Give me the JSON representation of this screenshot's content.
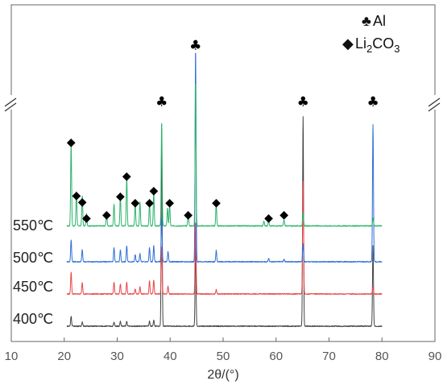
{
  "chart_data": {
    "type": "line",
    "xlabel": "2θ/(°)",
    "ylabel": "",
    "xlim": [
      10,
      90
    ],
    "x_ticks": [
      "10",
      "20",
      "30",
      "40",
      "50",
      "60",
      "70",
      "80",
      "90"
    ],
    "axis_break": true,
    "legend": {
      "placement": "top-right",
      "entries": [
        {
          "marker": "club",
          "symbol": "♣",
          "label": "Al"
        },
        {
          "marker": "diamond",
          "symbol": "◆",
          "label_main": "Li",
          "label_sub1": "2",
          "label_mid": "CO",
          "label_sub2": "3"
        }
      ]
    },
    "series": [
      {
        "name": "550℃",
        "color": "#2db36b",
        "baseline": 0.25,
        "peaks": [
          {
            "x": 21.3,
            "h": 2.05
          },
          {
            "x": 22.3,
            "h": 0.85
          },
          {
            "x": 23.4,
            "h": 0.75
          },
          {
            "x": 24.2,
            "h": 0.3
          },
          {
            "x": 28.0,
            "h": 0.3
          },
          {
            "x": 29.4,
            "h": 0.55
          },
          {
            "x": 30.6,
            "h": 0.75
          },
          {
            "x": 31.8,
            "h": 1.2
          },
          {
            "x": 33.4,
            "h": 0.55
          },
          {
            "x": 34.3,
            "h": 0.6
          },
          {
            "x": 36.1,
            "h": 0.55
          },
          {
            "x": 36.9,
            "h": 0.85
          },
          {
            "x": 38.4,
            "h": 2.6
          },
          {
            "x": 39.5,
            "h": 0.45
          },
          {
            "x": 39.9,
            "h": 0.5
          },
          {
            "x": 43.4,
            "h": 0.3
          },
          {
            "x": 44.8,
            "h": 3.6
          },
          {
            "x": 48.7,
            "h": 0.55
          },
          {
            "x": 57.7,
            "h": 0.12
          },
          {
            "x": 58.6,
            "h": 0.15
          },
          {
            "x": 61.5,
            "h": 0.15
          },
          {
            "x": 65.1,
            "h": 0.35
          },
          {
            "x": 78.3,
            "h": 0.2
          }
        ]
      },
      {
        "name": "500℃",
        "color": "#2f6fd6",
        "baseline": 0,
        "peaks": [
          {
            "x": 21.3,
            "h": 0.55
          },
          {
            "x": 23.4,
            "h": 0.3
          },
          {
            "x": 29.4,
            "h": 0.35
          },
          {
            "x": 30.6,
            "h": 0.3
          },
          {
            "x": 31.8,
            "h": 0.4
          },
          {
            "x": 33.4,
            "h": 0.18
          },
          {
            "x": 34.3,
            "h": 0.2
          },
          {
            "x": 36.1,
            "h": 0.35
          },
          {
            "x": 36.9,
            "h": 0.4
          },
          {
            "x": 38.4,
            "h": 1.1
          },
          {
            "x": 39.6,
            "h": 0.25
          },
          {
            "x": 44.8,
            "h": 5.3
          },
          {
            "x": 48.7,
            "h": 0.28
          },
          {
            "x": 58.6,
            "h": 0.08
          },
          {
            "x": 61.5,
            "h": 0.06
          },
          {
            "x": 65.1,
            "h": 0.45
          },
          {
            "x": 78.3,
            "h": 3.4
          }
        ]
      },
      {
        "name": "450℃",
        "color": "#e8474a",
        "baseline": 0,
        "peaks": [
          {
            "x": 21.3,
            "h": 0.55
          },
          {
            "x": 23.4,
            "h": 0.28
          },
          {
            "x": 29.4,
            "h": 0.3
          },
          {
            "x": 30.6,
            "h": 0.25
          },
          {
            "x": 31.8,
            "h": 0.3
          },
          {
            "x": 33.4,
            "h": 0.12
          },
          {
            "x": 34.3,
            "h": 0.18
          },
          {
            "x": 36.1,
            "h": 0.32
          },
          {
            "x": 36.9,
            "h": 0.35
          },
          {
            "x": 38.4,
            "h": 1.2
          },
          {
            "x": 39.6,
            "h": 0.2
          },
          {
            "x": 44.8,
            "h": 1.8
          },
          {
            "x": 48.7,
            "h": 0.12
          },
          {
            "x": 65.1,
            "h": 2.8
          },
          {
            "x": 78.3,
            "h": 0.2
          }
        ]
      },
      {
        "name": "400℃",
        "color": "#444444",
        "baseline": 0,
        "peaks": [
          {
            "x": 21.3,
            "h": 0.25
          },
          {
            "x": 23.4,
            "h": 0.1
          },
          {
            "x": 29.4,
            "h": 0.1
          },
          {
            "x": 30.6,
            "h": 0.12
          },
          {
            "x": 31.8,
            "h": 0.12
          },
          {
            "x": 36.1,
            "h": 0.12
          },
          {
            "x": 36.9,
            "h": 0.15
          },
          {
            "x": 38.4,
            "h": 5.0
          },
          {
            "x": 44.8,
            "h": 2.0
          },
          {
            "x": 65.1,
            "h": 5.2
          },
          {
            "x": 78.3,
            "h": 2.0
          }
        ]
      }
    ],
    "annotations": [
      {
        "symbol": "♣",
        "x": 38.4
      },
      {
        "symbol": "♣",
        "x": 44.8
      },
      {
        "symbol": "♣",
        "x": 65.1
      },
      {
        "symbol": "♣",
        "x": 78.3
      },
      {
        "symbol": "◆",
        "x": 21.3
      },
      {
        "symbol": "◆",
        "x": 22.3
      },
      {
        "symbol": "◆",
        "x": 23.4
      },
      {
        "symbol": "◆",
        "x": 24.2
      },
      {
        "symbol": "◆",
        "x": 28.0
      },
      {
        "symbol": "◆",
        "x": 30.6
      },
      {
        "symbol": "◆",
        "x": 31.8
      },
      {
        "symbol": "◆",
        "x": 33.4
      },
      {
        "symbol": "◆",
        "x": 36.1
      },
      {
        "symbol": "◆",
        "x": 36.9
      },
      {
        "symbol": "◆",
        "x": 39.9
      },
      {
        "symbol": "◆",
        "x": 43.4
      },
      {
        "symbol": "◆",
        "x": 48.7
      },
      {
        "symbol": "◆",
        "x": 58.6
      },
      {
        "symbol": "◆",
        "x": 61.5
      }
    ]
  }
}
